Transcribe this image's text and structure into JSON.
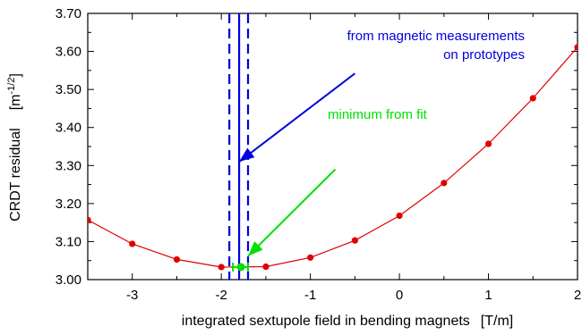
{
  "chart_data": {
    "type": "line",
    "title": "",
    "xlabel": "integrated sextupole field in bending magnets",
    "xunit": "[T/m]",
    "ylabel": "CRDT residual",
    "yunit_base": "[m",
    "yunit_exp": "-1/2",
    "yunit_close": "]",
    "xlim": [
      -3.5,
      2.0
    ],
    "ylim": [
      3.0,
      3.7
    ],
    "xticks": [
      -3,
      -2,
      -1,
      0,
      1,
      2
    ],
    "yticks": [
      3.0,
      3.1,
      3.2,
      3.3,
      3.4,
      3.5,
      3.6,
      3.7
    ],
    "xtick_labels": [
      "-3",
      "-2",
      "-1",
      "0",
      "1",
      "2"
    ],
    "ytick_labels": [
      "3.00",
      "3.10",
      "3.20",
      "3.30",
      "3.40",
      "3.50",
      "3.60",
      "3.70"
    ],
    "grid": false,
    "series": [
      {
        "x": [
          -3.5,
          -3.0,
          -2.5,
          -2.0,
          -1.5,
          -1.0,
          -0.5,
          0.0,
          0.5,
          1.0,
          1.5,
          2.0
        ],
        "y": [
          3.157,
          3.094,
          3.053,
          3.033,
          3.034,
          3.058,
          3.103,
          3.168,
          3.254,
          3.357,
          3.477,
          3.611
        ],
        "color": "#e00000"
      }
    ],
    "vertical_lines": [
      {
        "x": -1.91,
        "style": "dashed",
        "color": "#0000e0"
      },
      {
        "x": -1.8,
        "style": "solid",
        "color": "#0000e0"
      },
      {
        "x": -1.7,
        "style": "dashed",
        "color": "#0000e0"
      }
    ],
    "fit_minimum": {
      "x": -1.78,
      "x_low": -1.87,
      "x_high": -1.7,
      "y": 3.033,
      "color": "#00e000"
    },
    "annotations": [
      {
        "lines": [
          "from magnetic measurements",
          "on prototypes"
        ],
        "color": "#0000e0",
        "arrow_from": [
          -0.5,
          3.542
        ],
        "arrow_to": [
          -1.8,
          3.31
        ]
      },
      {
        "lines": [
          "minimum from fit"
        ],
        "color": "#00e000",
        "arrow_from": [
          -0.72,
          3.29
        ],
        "arrow_to": [
          -1.7,
          3.062
        ]
      }
    ]
  }
}
